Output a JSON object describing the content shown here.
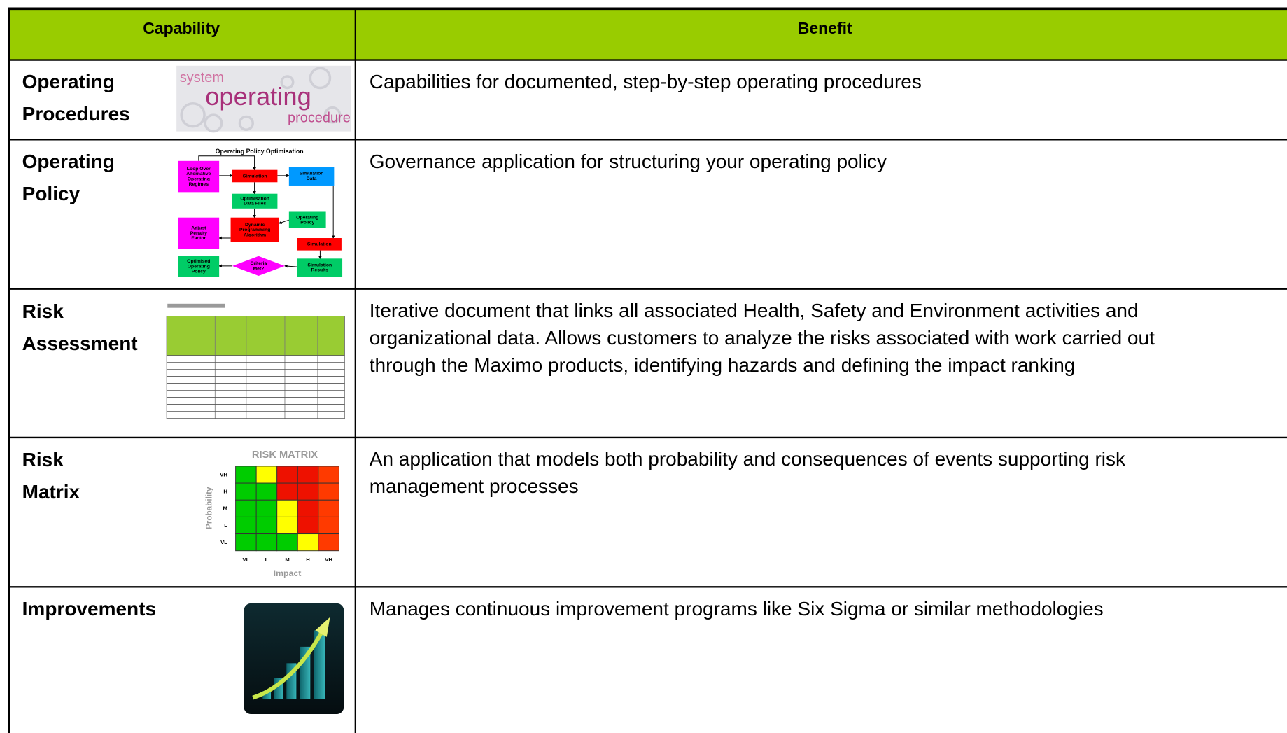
{
  "table": {
    "headers": [
      "Capability",
      "Benefit"
    ],
    "rows": [
      {
        "capability": [
          "Operating",
          "Procedures"
        ],
        "benefit": [
          "Capabilities for documented, step-by-step operating procedures"
        ]
      },
      {
        "capability": [
          "Operating",
          "Policy"
        ],
        "benefit": [
          "Governance application for structuring your operating policy"
        ]
      },
      {
        "capability": [
          "Risk",
          "Assessment"
        ],
        "benefit": [
          "Iterative document that links all associated Health, Safety and Environment activities and",
          "organizational data. Allows customers to analyze the risks associated with work carried out",
          "through the Maximo products, identifying hazards and defining the impact ranking"
        ]
      },
      {
        "capability": [
          "Risk",
          "Matrix"
        ],
        "benefit": [
          "An application that models both probability and consequences of events supporting risk",
          "management processes"
        ]
      },
      {
        "capability": [
          "Improvements"
        ],
        "benefit": [
          "Manages continuous improvement programs like Six Sigma or similar methodologies"
        ]
      }
    ]
  },
  "thumbnails": {
    "operating_procedures": {
      "words": [
        "system",
        "operating",
        "procedure"
      ]
    },
    "operating_policy": {
      "title": "Operating Policy Optimisation",
      "nodes": [
        [
          "Loop Over",
          "Alternative",
          "Operating",
          "Regimes"
        ],
        [
          "Simulation"
        ],
        [
          "Simulation",
          "Data"
        ],
        [
          "Optimisation",
          "Data Files"
        ],
        [
          "Operating",
          "Policy"
        ],
        [
          "Dynamic",
          "Programming",
          "Algorithm"
        ],
        [
          "Adjust",
          "Penalty",
          "Factor"
        ],
        [
          "Simulation"
        ],
        [
          "Optimised",
          "Operating",
          "Policy"
        ],
        [
          "Criteria",
          "Met?"
        ],
        [
          "Simulation",
          "Results"
        ]
      ]
    },
    "risk_matrix": {
      "title": "RISK MATRIX",
      "y_label": "Probability",
      "y_levels": [
        "VH",
        "H",
        "M",
        "L",
        "VL"
      ],
      "x_levels": [
        "VL",
        "L",
        "M",
        "H",
        "VH"
      ],
      "x_label": "Impact"
    }
  }
}
